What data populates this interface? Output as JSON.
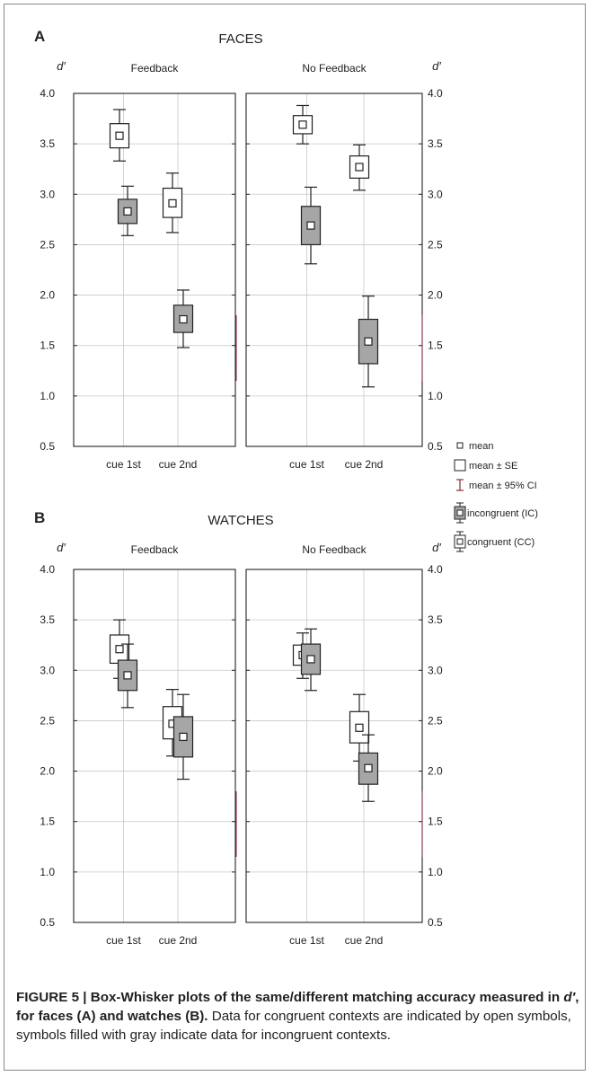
{
  "chart_data": [
    {
      "type": "box",
      "panel_letter": "A",
      "title": "FACES",
      "ylabel": "d′",
      "ylim": [
        0.5,
        4.0
      ],
      "yticks": [
        "0.5",
        "1.0",
        "1.5",
        "2.0",
        "2.5",
        "3.0",
        "3.5",
        "4.0"
      ],
      "subplots": [
        {
          "title": "Feedback",
          "categories": [
            "cue 1st",
            "cue 2nd"
          ],
          "series": [
            {
              "name": "congruent (CC)",
              "mean": [
                3.58,
                2.91
              ],
              "se": [
                [
                  3.46,
                  3.7
                ],
                [
                  2.77,
                  3.06
                ]
              ],
              "ci95": [
                [
                  3.33,
                  3.84
                ],
                [
                  2.62,
                  3.21
                ]
              ]
            },
            {
              "name": "incongruent (IC)",
              "mean": [
                2.83,
                1.76
              ],
              "se": [
                [
                  2.71,
                  2.95
                ],
                [
                  1.63,
                  1.9
                ]
              ],
              "ci95": [
                [
                  2.59,
                  3.08
                ],
                [
                  1.48,
                  2.05
                ]
              ]
            }
          ]
        },
        {
          "title": "No Feedback",
          "categories": [
            "cue 1st",
            "cue 2nd"
          ],
          "series": [
            {
              "name": "congruent (CC)",
              "mean": [
                3.69,
                3.27
              ],
              "se": [
                [
                  3.6,
                  3.78
                ],
                [
                  3.16,
                  3.38
                ]
              ],
              "ci95": [
                [
                  3.5,
                  3.88
                ],
                [
                  3.04,
                  3.49
                ]
              ]
            },
            {
              "name": "incongruent (IC)",
              "mean": [
                2.69,
                1.54
              ],
              "se": [
                [
                  2.5,
                  2.88
                ],
                [
                  1.32,
                  1.76
                ]
              ],
              "ci95": [
                [
                  2.31,
                  3.07
                ],
                [
                  1.09,
                  1.99
                ]
              ]
            }
          ]
        }
      ]
    },
    {
      "type": "box",
      "panel_letter": "B",
      "title": "WATCHES",
      "ylabel": "d′",
      "ylim": [
        0.5,
        4.0
      ],
      "yticks": [
        "0.5",
        "1.0",
        "1.5",
        "2.0",
        "2.5",
        "3.0",
        "3.5",
        "4.0"
      ],
      "subplots": [
        {
          "title": "Feedback",
          "categories": [
            "cue 1st",
            "cue 2nd"
          ],
          "series": [
            {
              "name": "congruent (CC)",
              "mean": [
                3.21,
                2.47
              ],
              "se": [
                [
                  3.07,
                  3.35
                ],
                [
                  2.32,
                  2.64
                ]
              ],
              "ci95": [
                [
                  2.92,
                  3.5
                ],
                [
                  2.15,
                  2.81
                ]
              ]
            },
            {
              "name": "incongruent (IC)",
              "mean": [
                2.95,
                2.34
              ],
              "se": [
                [
                  2.8,
                  3.1
                ],
                [
                  2.14,
                  2.54
                ]
              ],
              "ci95": [
                [
                  2.63,
                  3.26
                ],
                [
                  1.92,
                  2.76
                ]
              ]
            }
          ]
        },
        {
          "title": "No Feedback",
          "categories": [
            "cue 1st",
            "cue 2nd"
          ],
          "series": [
            {
              "name": "congruent (CC)",
              "mean": [
                3.15,
                2.43
              ],
              "se": [
                [
                  3.05,
                  3.25
                ],
                [
                  2.28,
                  2.59
                ]
              ],
              "ci95": [
                [
                  2.92,
                  3.37
                ],
                [
                  2.1,
                  2.76
                ]
              ]
            },
            {
              "name": "incongruent (IC)",
              "mean": [
                3.11,
                2.03
              ],
              "se": [
                [
                  2.96,
                  3.26
                ],
                [
                  1.87,
                  2.18
                ]
              ],
              "ci95": [
                [
                  2.8,
                  3.41
                ],
                [
                  1.7,
                  2.36
                ]
              ]
            }
          ]
        }
      ]
    }
  ],
  "legend": {
    "items": [
      "mean",
      "mean ± SE",
      "mean ± 95% CI",
      "incongruent (IC)",
      "congruent (CC)"
    ]
  },
  "caption": {
    "label": "FIGURE 5 | Box-Whisker plots of the same/different matching accuracy measured in ",
    "label_italic": "d′",
    "label_end": ", for faces (A) and watches (B).",
    "text": " Data for congruent contexts are indicated by open symbols, symbols filled with gray indicate data for incongruent contexts."
  },
  "colors": {
    "congruent_fill": "#ffffff",
    "incongruent_fill": "#a6a6a6",
    "axis": "#222222",
    "grid": "#c8c8c8",
    "ci_marker": "#8b2a3a"
  }
}
